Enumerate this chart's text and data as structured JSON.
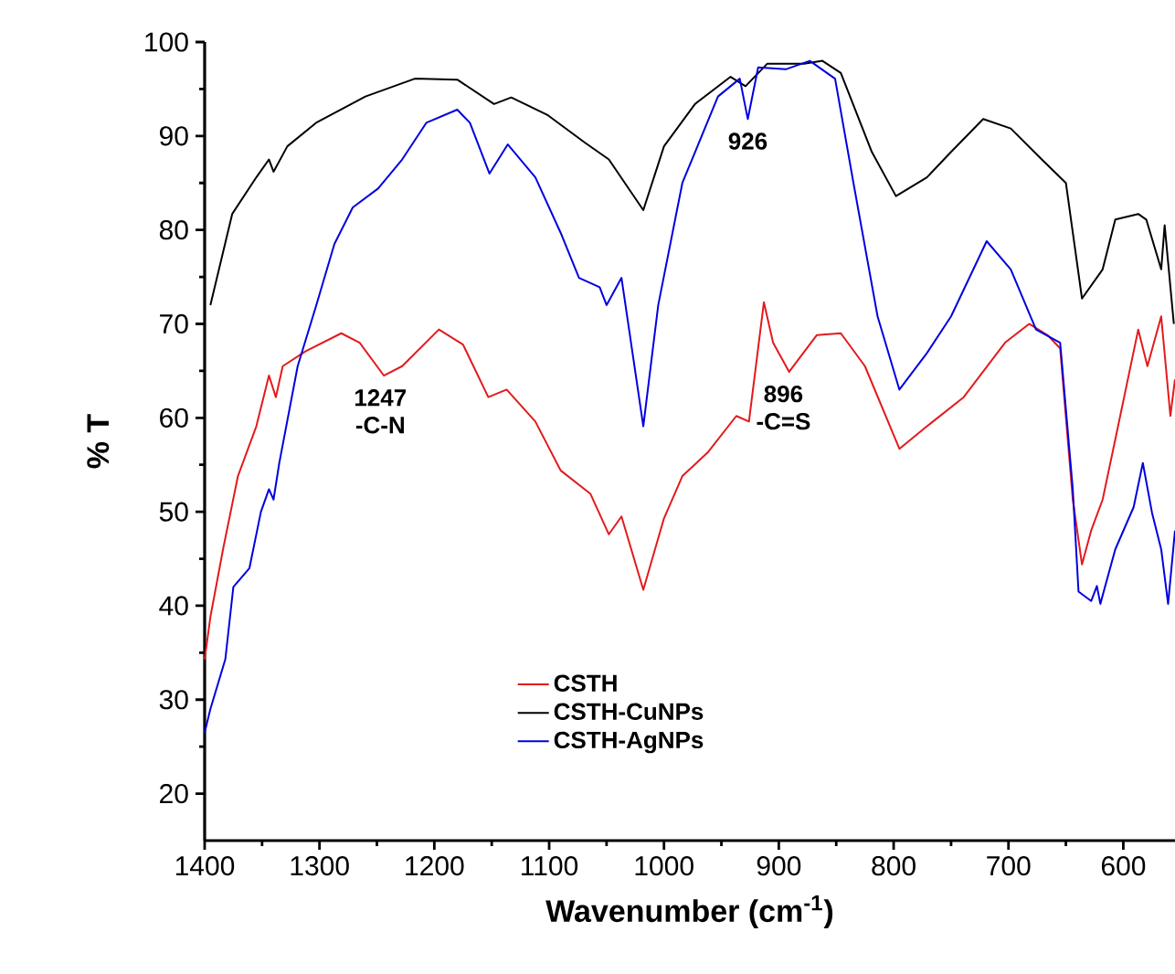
{
  "chart_data": {
    "type": "line",
    "xlabel": "Wavenumber (cm$^{-1}$)",
    "ylabel": "% T",
    "xlim": [
      1400,
      555
    ],
    "ylim": [
      15,
      100
    ],
    "xticks": [
      1400,
      1300,
      1200,
      1100,
      1000,
      900,
      800,
      700,
      600
    ],
    "yticks": [
      20,
      30,
      40,
      50,
      60,
      70,
      80,
      90,
      100
    ],
    "legend": "bottom",
    "grid": false,
    "marker": "none",
    "line_style": "solid",
    "annotations": [
      {
        "text": "1247 -C-N",
        "x": 1247,
        "y": 64.5
      },
      {
        "text": "926",
        "x": 927,
        "y": 91.8
      },
      {
        "text": "896 -C=S",
        "x": 896,
        "y": 64.9
      }
    ],
    "series": [
      {
        "name": "CSTH",
        "color": "#e31a1c",
        "x": [
          1400,
          1395,
          1384,
          1371,
          1355,
          1344,
          1338,
          1332,
          1312,
          1281,
          1265,
          1244,
          1228,
          1196,
          1175,
          1153,
          1137,
          1112,
          1090,
          1064,
          1048,
          1037,
          1018,
          1000,
          984,
          962,
          937,
          926,
          913,
          905,
          891,
          867,
          846,
          825,
          795,
          771,
          739,
          703,
          682,
          666,
          655,
          644,
          636,
          628,
          618,
          607,
          587,
          579,
          567,
          559,
          555
        ],
        "values": [
          34.3,
          38.8,
          46,
          53.8,
          59.1,
          64.5,
          62.2,
          65.5,
          67.1,
          69,
          68,
          64.5,
          65.5,
          69.4,
          67.8,
          62.2,
          63,
          59.6,
          54.4,
          51.9,
          47.6,
          49.5,
          41.7,
          49.3,
          53.8,
          56.3,
          60.2,
          59.6,
          72.3,
          68,
          64.9,
          68.8,
          69,
          65.5,
          56.7,
          59.1,
          62.2,
          68,
          70,
          68.8,
          67.4,
          51.3,
          44.4,
          48,
          51.3,
          57.7,
          69.4,
          65.5,
          70.8,
          60.2,
          64.1
        ]
      },
      {
        "name": "CSTH-CuNPs",
        "color": "#000000",
        "x": [
          1395,
          1376,
          1355,
          1344,
          1340,
          1328,
          1303,
          1260,
          1217,
          1180,
          1148,
          1133,
          1101,
          1069,
          1048,
          1018,
          1000,
          973,
          942,
          929,
          910,
          878,
          862,
          846,
          819,
          798,
          771,
          750,
          722,
          698,
          671,
          650,
          636,
          618,
          607,
          587,
          580,
          567,
          564,
          556
        ],
        "values": [
          72,
          81.7,
          85.6,
          87.5,
          86.2,
          88.9,
          91.4,
          94.2,
          96.1,
          96,
          93.4,
          94.1,
          92.2,
          89.3,
          87.5,
          82.1,
          88.9,
          93.4,
          96.3,
          95.3,
          97.7,
          97.7,
          98,
          96.7,
          88.3,
          83.6,
          85.6,
          88.3,
          91.8,
          90.8,
          87.5,
          85,
          72.7,
          75.8,
          81.1,
          81.7,
          81.1,
          75.8,
          80.5,
          70
        ]
      },
      {
        "name": "CSTH-AgNPs",
        "color": "#0000e0",
        "x": [
          1400,
          1395,
          1382,
          1375,
          1361,
          1351,
          1344,
          1340,
          1335,
          1319,
          1303,
          1287,
          1271,
          1249,
          1228,
          1207,
          1180,
          1169,
          1152,
          1136,
          1112,
          1090,
          1074,
          1056,
          1050,
          1037,
          1018,
          1005,
          984,
          953,
          934,
          927,
          918,
          894,
          873,
          851,
          835,
          814,
          795,
          771,
          750,
          719,
          698,
          676,
          655,
          644,
          639,
          628,
          623,
          620,
          607,
          591,
          583,
          575,
          567,
          561,
          555
        ],
        "values": [
          26.5,
          29,
          34.3,
          42,
          44,
          50,
          52.4,
          51.3,
          55.2,
          65.5,
          71.9,
          78.5,
          82.4,
          84.4,
          87.5,
          91.4,
          92.8,
          91.4,
          86,
          89.1,
          85.6,
          79.7,
          74.9,
          73.9,
          72,
          74.9,
          59.1,
          72,
          85,
          94.2,
          96.1,
          91.8,
          97.3,
          97.1,
          98,
          96.1,
          85,
          70.8,
          63,
          66.9,
          70.8,
          78.8,
          75.8,
          69.4,
          68,
          52.4,
          41.5,
          40.5,
          42.1,
          40.2,
          46,
          50.5,
          55.2,
          49.9,
          46,
          40.2,
          48
        ]
      }
    ]
  }
}
